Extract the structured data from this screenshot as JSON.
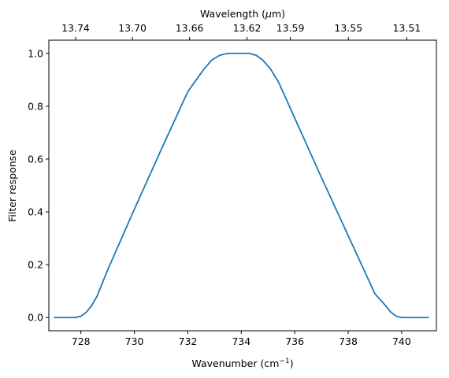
{
  "chart_data": {
    "type": "line",
    "xlabel": "Wavenumber (cm",
    "xlabel_sup": "−1",
    "xlabel_end": ")",
    "ylabel": "Filter response",
    "top_xlabel": "Wavelength (",
    "top_xlabel_mu": "μ",
    "top_xlabel_end": "m)",
    "xlim": [
      726.8,
      741.3
    ],
    "ylim": [
      -0.05,
      1.05
    ],
    "x_ticks": [
      728,
      730,
      732,
      734,
      736,
      738,
      740
    ],
    "y_ticks": [
      0.0,
      0.2,
      0.4,
      0.6,
      0.8,
      1.0
    ],
    "y_tick_labels": [
      "0.0",
      "0.2",
      "0.4",
      "0.6",
      "0.8",
      "1.0"
    ],
    "top_ticks": [
      "13.74",
      "13.70",
      "13.66",
      "13.62",
      "13.59",
      "13.55",
      "13.51"
    ],
    "grid": false,
    "series": [
      {
        "color": "#1f77b4",
        "x": [
          727.0,
          727.8,
          728.0,
          728.2,
          728.4,
          728.6,
          728.8,
          729.0,
          730.0,
          731.0,
          732.0,
          732.6,
          732.9,
          733.2,
          733.5,
          733.75,
          734.0,
          734.3,
          734.55,
          734.8,
          735.1,
          735.4,
          736.0,
          737.0,
          738.0,
          739.0,
          739.4,
          739.6,
          739.8,
          740.0,
          740.2,
          741.0
        ],
        "y": [
          0.0,
          0.0,
          0.005,
          0.02,
          0.045,
          0.08,
          0.13,
          0.18,
          0.41,
          0.635,
          0.855,
          0.94,
          0.975,
          0.993,
          1.0,
          1.0,
          1.0,
          1.0,
          0.993,
          0.975,
          0.94,
          0.89,
          0.755,
          0.53,
          0.31,
          0.09,
          0.045,
          0.02,
          0.005,
          0.0,
          0.0,
          0.0
        ]
      }
    ]
  }
}
